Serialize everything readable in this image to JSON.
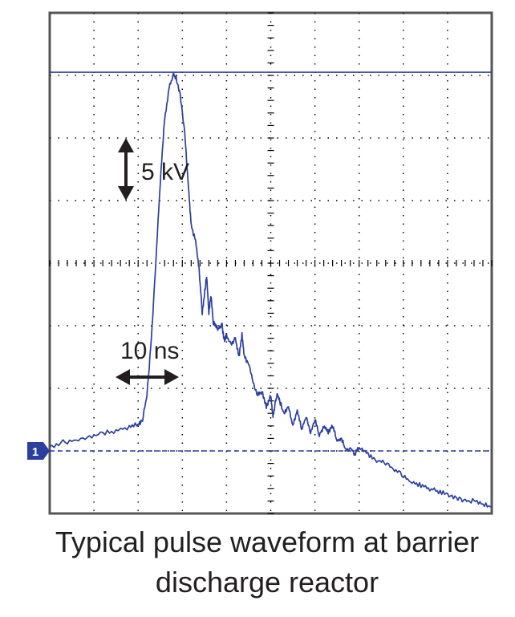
{
  "caption": {
    "line1": "Typical pulse waveform at barrier",
    "line2": "discharge reactor"
  },
  "colors": {
    "trace": "#2b3f9e",
    "grid": "#000000",
    "frame": "#555555",
    "annotation": "#231f20",
    "marker_fill": "#2b3f9e"
  },
  "chart_data": {
    "type": "line",
    "title": "",
    "xlabel": "",
    "ylabel": "",
    "xlim": [
      0,
      10
    ],
    "ylim": [
      0,
      8
    ],
    "grid": true,
    "grid_divisions": {
      "x": 10,
      "y": 8
    },
    "channel_marker": "1",
    "ground_level_div": 1.0,
    "peak_level_div": 7.05,
    "annotations": {
      "voltage_scale": "5 kV",
      "time_scale": "10 ns"
    },
    "series": [
      {
        "values": [
          [
            0.0,
            1.07
          ],
          [
            0.3,
            1.14
          ],
          [
            0.6,
            1.17
          ],
          [
            0.9,
            1.22
          ],
          [
            1.2,
            1.28
          ],
          [
            1.5,
            1.32
          ],
          [
            1.8,
            1.38
          ],
          [
            2.0,
            1.42
          ],
          [
            2.1,
            1.5
          ],
          [
            2.2,
            1.9
          ],
          [
            2.3,
            2.8
          ],
          [
            2.4,
            4.0
          ],
          [
            2.5,
            5.3
          ],
          [
            2.6,
            6.3
          ],
          [
            2.7,
            6.8
          ],
          [
            2.8,
            7.02
          ],
          [
            2.86,
            6.95
          ],
          [
            2.95,
            6.7
          ],
          [
            3.05,
            6.1
          ],
          [
            3.15,
            5.1
          ],
          [
            3.2,
            4.6
          ],
          [
            3.3,
            4.35
          ],
          [
            3.38,
            3.9
          ],
          [
            3.45,
            3.2
          ],
          [
            3.5,
            3.5
          ],
          [
            3.55,
            3.8
          ],
          [
            3.6,
            3.2
          ],
          [
            3.65,
            3.5
          ],
          [
            3.7,
            3.05
          ],
          [
            3.8,
            2.95
          ],
          [
            3.9,
            3.0
          ],
          [
            3.95,
            2.75
          ],
          [
            4.0,
            2.85
          ],
          [
            4.1,
            2.7
          ],
          [
            4.2,
            2.8
          ],
          [
            4.28,
            2.5
          ],
          [
            4.35,
            2.85
          ],
          [
            4.4,
            2.5
          ],
          [
            4.5,
            2.4
          ],
          [
            4.6,
            2.1
          ],
          [
            4.7,
            1.9
          ],
          [
            4.8,
            1.95
          ],
          [
            4.9,
            1.7
          ],
          [
            5.0,
            1.9
          ],
          [
            5.05,
            1.55
          ],
          [
            5.1,
            1.75
          ],
          [
            5.15,
            1.9
          ],
          [
            5.2,
            1.8
          ],
          [
            5.3,
            1.6
          ],
          [
            5.4,
            1.7
          ],
          [
            5.5,
            1.4
          ],
          [
            5.6,
            1.65
          ],
          [
            5.7,
            1.35
          ],
          [
            5.8,
            1.55
          ],
          [
            5.9,
            1.3
          ],
          [
            6.0,
            1.5
          ],
          [
            6.1,
            1.25
          ],
          [
            6.2,
            1.4
          ],
          [
            6.3,
            1.3
          ],
          [
            6.4,
            1.4
          ],
          [
            6.5,
            1.15
          ],
          [
            6.6,
            1.2
          ],
          [
            6.7,
            1.0
          ],
          [
            6.8,
            1.05
          ],
          [
            6.9,
            0.95
          ],
          [
            7.0,
            1.05
          ],
          [
            7.2,
            0.95
          ],
          [
            7.4,
            0.85
          ],
          [
            7.6,
            0.8
          ],
          [
            7.8,
            0.7
          ],
          [
            8.0,
            0.6
          ],
          [
            8.2,
            0.5
          ],
          [
            8.4,
            0.45
          ],
          [
            8.6,
            0.4
          ],
          [
            8.8,
            0.35
          ],
          [
            9.0,
            0.3
          ],
          [
            9.2,
            0.25
          ],
          [
            9.4,
            0.2
          ],
          [
            9.6,
            0.2
          ],
          [
            9.8,
            0.15
          ],
          [
            10.0,
            0.1
          ]
        ]
      }
    ]
  }
}
